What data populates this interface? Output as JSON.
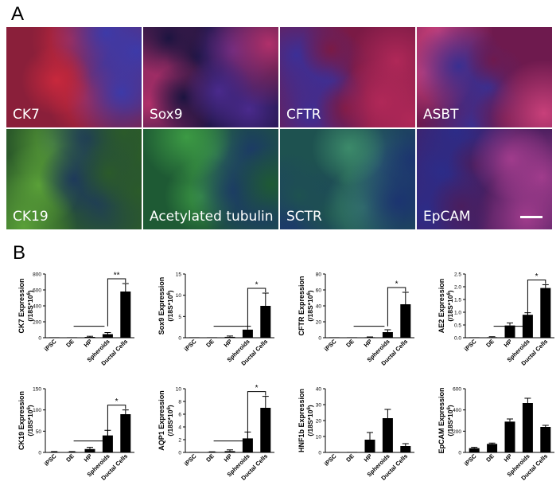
{
  "panel_a_label": "A",
  "panel_b_label": "B",
  "micrographs": [
    {
      "label": "CK7",
      "stain": "red",
      "colors": [
        "#8a1f3a",
        "#c8283c",
        "#3d3aa8"
      ]
    },
    {
      "label": "Sox9",
      "stain": "red",
      "colors": [
        "#1c1440",
        "#4a2a8c",
        "#b0306a"
      ]
    },
    {
      "label": "CFTR",
      "stain": "red",
      "colors": [
        "#7a1a45",
        "#b02858",
        "#3c2f96"
      ]
    },
    {
      "label": "ASBT",
      "stain": "red",
      "colors": [
        "#6e1a4e",
        "#c8407a",
        "#3a2f90"
      ]
    },
    {
      "label": "CK19",
      "stain": "green",
      "colors": [
        "#2b5a2a",
        "#5aa038",
        "#1e3a5a"
      ]
    },
    {
      "label": "Acetylated tubulin",
      "stain": "green",
      "colors": [
        "#1e5a34",
        "#3c9a44",
        "#1c3c64"
      ]
    },
    {
      "label": "SCTR",
      "stain": "green",
      "colors": [
        "#1e5250",
        "#3c8a6a",
        "#1c3470"
      ]
    },
    {
      "label": "EpCAM",
      "stain": "red",
      "colors": [
        "#4a1e5e",
        "#a03c8c",
        "#2c2c88"
      ]
    }
  ],
  "chart_data": [
    {
      "type": "bar",
      "categories": [
        "iPSC",
        "DE",
        "HP",
        "Spheroids",
        "Ductal Cells"
      ],
      "values": [
        0,
        0,
        10,
        45,
        580
      ],
      "errors": [
        0,
        0,
        8,
        20,
        100
      ],
      "ylabel_main": "CK7 Expression",
      "ylabel_unit": "(/18S*10",
      "ylabel_exp": "6",
      "ylabel_close": ")",
      "ylim": [
        0,
        800
      ],
      "yticks": [
        "0",
        "200",
        "400",
        "600",
        "800"
      ],
      "significance": "**"
    },
    {
      "type": "bar",
      "categories": [
        "iPSC",
        "DE",
        "HP",
        "Spheroids",
        "Ductal Cells"
      ],
      "values": [
        0,
        0,
        0.2,
        1.9,
        7.5
      ],
      "errors": [
        0,
        0,
        0.2,
        0.8,
        3
      ],
      "ylabel_main": "Sox9 Expression",
      "ylabel_unit": "(/18S*10",
      "ylabel_exp": "6",
      "ylabel_close": ")",
      "ylim": [
        0,
        15
      ],
      "yticks": [
        "0",
        "5",
        "10",
        "15"
      ],
      "significance": "*"
    },
    {
      "type": "bar",
      "categories": [
        "iPSC",
        "DE",
        "HP",
        "Spheroids",
        "Ductal Cells"
      ],
      "values": [
        0,
        0,
        0.5,
        7,
        42
      ],
      "errors": [
        0,
        0,
        0.5,
        3,
        15
      ],
      "ylabel_main": "CFTR Expression",
      "ylabel_unit": "(/18S*10",
      "ylabel_exp": "6",
      "ylabel_close": ")",
      "ylim": [
        0,
        80
      ],
      "yticks": [
        "0",
        "20",
        "40",
        "60",
        "80"
      ],
      "significance": "*"
    },
    {
      "type": "bar",
      "categories": [
        "iPSC",
        "DE",
        "HP",
        "Spheroids",
        "Ductal Cells"
      ],
      "values": [
        0,
        0.02,
        0.48,
        0.9,
        1.95
      ],
      "errors": [
        0,
        0.02,
        0.1,
        0.08,
        0.13
      ],
      "ylabel_main": "AE2 Expression",
      "ylabel_unit": "(/18S*10",
      "ylabel_exp": "6",
      "ylabel_close": ")",
      "ylim": [
        0,
        2.5
      ],
      "yticks": [
        "0.0",
        "0.5",
        "1.0",
        "1.5",
        "2.0",
        "2.5"
      ],
      "significance": "*"
    },
    {
      "type": "bar",
      "categories": [
        "iPSC",
        "DE",
        "HP",
        "Spheroids",
        "Ductal Cells"
      ],
      "values": [
        1,
        1,
        8,
        40,
        90
      ],
      "errors": [
        1,
        1,
        4,
        12,
        10
      ],
      "ylabel_main": "CK19 Expression",
      "ylabel_unit": "(/18S*10",
      "ylabel_exp": "6",
      "ylabel_close": ")",
      "ylim": [
        0,
        150
      ],
      "yticks": [
        "0",
        "50",
        "100",
        "150"
      ],
      "significance": "*"
    },
    {
      "type": "bar",
      "categories": [
        "iPSC",
        "DE",
        "HP",
        "Spheroids",
        "Ductal Cells"
      ],
      "values": [
        0,
        0.05,
        0.2,
        2.2,
        7
      ],
      "errors": [
        0,
        0.05,
        0.2,
        1,
        1.8
      ],
      "ylabel_main": "AQP1 Expression",
      "ylabel_unit": "(/18S*10",
      "ylabel_exp": "6",
      "ylabel_close": ")",
      "ylim": [
        0,
        10
      ],
      "yticks": [
        "0",
        "2",
        "4",
        "6",
        "8",
        "10"
      ],
      "significance": "*"
    },
    {
      "type": "bar",
      "categories": [
        "iPSC",
        "DE",
        "HP",
        "Spheroids",
        "Ductal Cells"
      ],
      "values": [
        0,
        0,
        8,
        21.5,
        4
      ],
      "errors": [
        0,
        0,
        4.5,
        5.5,
        1.5
      ],
      "ylabel_main": "HNF1b Expression",
      "ylabel_unit": "(/18S*10",
      "ylabel_exp": "6",
      "ylabel_close": ")",
      "ylim": [
        0,
        40
      ],
      "yticks": [
        "0",
        "10",
        "20",
        "30",
        "40"
      ],
      "significance": ""
    },
    {
      "type": "bar",
      "categories": [
        "iPSC",
        "DE",
        "HP",
        "Spheroids",
        "Ductal Cells"
      ],
      "values": [
        40,
        80,
        290,
        465,
        240
      ],
      "errors": [
        8,
        8,
        25,
        45,
        15
      ],
      "ylabel_main": "EpCAM Expression",
      "ylabel_unit": "(/18S*10",
      "ylabel_exp": "6",
      "ylabel_close": ")",
      "ylim": [
        0,
        600
      ],
      "yticks": [
        "0",
        "200",
        "400",
        "600"
      ],
      "significance": ""
    }
  ]
}
